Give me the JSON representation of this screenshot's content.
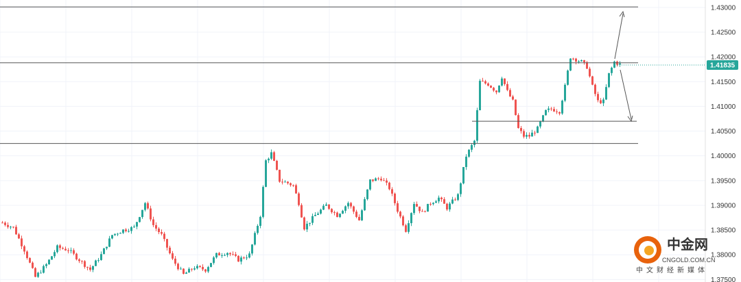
{
  "chart_data": {
    "type": "candlestick",
    "y_ticks": [
      "1.43000",
      "1.42500",
      "1.42000",
      "1.41500",
      "1.41000",
      "1.40500",
      "1.40000",
      "1.39500",
      "1.39000",
      "1.38500",
      "1.38000",
      "1.37500"
    ],
    "ylim": [
      1.3745,
      1.4315
    ],
    "current_price": "1.41835",
    "colors": {
      "up": "#26a69a",
      "down": "#ef5350",
      "line": "#555555",
      "badge": "#26a69a"
    },
    "levels": [
      {
        "name": "resistance-1.4300",
        "y": 1.4301
      },
      {
        "name": "resistance-1.4188",
        "y": 1.4188
      },
      {
        "name": "support-1.4070",
        "y": 1.407
      },
      {
        "name": "support-1.4025",
        "y": 1.4025
      }
    ],
    "waypoints": [
      [
        0,
        1.3865
      ],
      [
        4,
        1.3855
      ],
      [
        8,
        1.381
      ],
      [
        12,
        1.3755
      ],
      [
        16,
        1.378
      ],
      [
        20,
        1.3815
      ],
      [
        24,
        1.381
      ],
      [
        28,
        1.379
      ],
      [
        32,
        1.377
      ],
      [
        36,
        1.38
      ],
      [
        40,
        1.384
      ],
      [
        44,
        1.385
      ],
      [
        48,
        1.3855
      ],
      [
        52,
        1.3905
      ],
      [
        55,
        1.386
      ],
      [
        58,
        1.384
      ],
      [
        62,
        1.379
      ],
      [
        66,
        1.376
      ],
      [
        70,
        1.3775
      ],
      [
        74,
        1.377
      ],
      [
        78,
        1.38
      ],
      [
        82,
        1.3805
      ],
      [
        86,
        1.379
      ],
      [
        90,
        1.38
      ],
      [
        94,
        1.388
      ],
      [
        96,
        1.399
      ],
      [
        98,
        1.4005
      ],
      [
        101,
        1.395
      ],
      [
        104,
        1.3945
      ],
      [
        106,
        1.394
      ],
      [
        108,
        1.3905
      ],
      [
        110,
        1.3855
      ],
      [
        114,
        1.388
      ],
      [
        118,
        1.39
      ],
      [
        122,
        1.388
      ],
      [
        126,
        1.3905
      ],
      [
        130,
        1.387
      ],
      [
        134,
        1.395
      ],
      [
        138,
        1.3955
      ],
      [
        141,
        1.3935
      ],
      [
        144,
        1.389
      ],
      [
        147,
        1.385
      ],
      [
        150,
        1.3905
      ],
      [
        153,
        1.3885
      ],
      [
        156,
        1.3905
      ],
      [
        159,
        1.3915
      ],
      [
        162,
        1.3895
      ],
      [
        166,
        1.392
      ],
      [
        169,
        1.4
      ],
      [
        172,
        1.403
      ],
      [
        174,
        1.415
      ],
      [
        177,
        1.4145
      ],
      [
        180,
        1.413
      ],
      [
        182,
        1.416
      ],
      [
        184,
        1.413
      ],
      [
        186,
        1.411
      ],
      [
        188,
        1.4055
      ],
      [
        190,
        1.404
      ],
      [
        192,
        1.404
      ],
      [
        195,
        1.4055
      ],
      [
        198,
        1.409
      ],
      [
        200,
        1.4095
      ],
      [
        203,
        1.409
      ],
      [
        205,
        1.414
      ],
      [
        207,
        1.42
      ],
      [
        209,
        1.4195
      ],
      [
        211,
        1.419
      ],
      [
        213,
        1.418
      ],
      [
        215,
        1.414
      ],
      [
        217,
        1.411
      ],
      [
        219,
        1.411
      ],
      [
        221,
        1.4165
      ],
      [
        223,
        1.419
      ],
      [
        225,
        1.4185
      ]
    ]
  },
  "watermark": {
    "logo_cn": "中金网",
    "logo_en": "CNGOLD.COM.CN",
    "logo_sub": "中文财经新媒体"
  }
}
